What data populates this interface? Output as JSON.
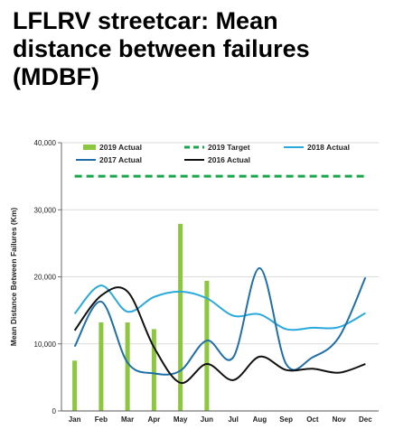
{
  "title": "LFLRV streetcar: Mean distance between failures (MDBF)",
  "chart_data": {
    "type": "bar+line",
    "title": "LFLRV streetcar: Mean distance between failures (MDBF)",
    "xlabel": "",
    "ylabel": "Mean Distance Between Failures (Km)",
    "ylim": [
      0,
      40000
    ],
    "yticks": [
      0,
      10000,
      20000,
      30000,
      40000
    ],
    "ytick_labels": [
      "0",
      "10,000",
      "20,000",
      "30,000",
      "40,000"
    ],
    "categories": [
      "Jan",
      "Feb",
      "Mar",
      "Apr",
      "May",
      "Jun",
      "Jul",
      "Aug",
      "Sep",
      "Oct",
      "Nov",
      "Dec"
    ],
    "grid": true,
    "legend_position": "top",
    "series": [
      {
        "name": "2019 Actual",
        "kind": "bar",
        "color": "#8dc63f",
        "values": [
          7500,
          13200,
          13200,
          12200,
          27900,
          19400,
          null,
          null,
          null,
          null,
          null,
          null
        ]
      },
      {
        "name": "2019 Target",
        "kind": "dashed-line",
        "color": "#1aa64a",
        "values": [
          35000,
          35000,
          35000,
          35000,
          35000,
          35000,
          35000,
          35000,
          35000,
          35000,
          35000,
          35000
        ]
      },
      {
        "name": "2018 Actual",
        "kind": "line",
        "color": "#2aa9dc",
        "values": [
          14500,
          18700,
          14800,
          17000,
          17800,
          16800,
          14200,
          14400,
          12200,
          12400,
          12500,
          14600
        ]
      },
      {
        "name": "2017 Actual",
        "kind": "line",
        "color": "#1f6fa8",
        "values": [
          9600,
          16300,
          7200,
          5600,
          6000,
          10500,
          8000,
          21300,
          7000,
          8000,
          11000,
          19900
        ]
      },
      {
        "name": "2016 Actual",
        "kind": "line",
        "color": "#111111",
        "values": [
          12000,
          17200,
          17800,
          9500,
          4200,
          7000,
          4600,
          8100,
          6100,
          6300,
          5700,
          7000
        ]
      }
    ]
  }
}
